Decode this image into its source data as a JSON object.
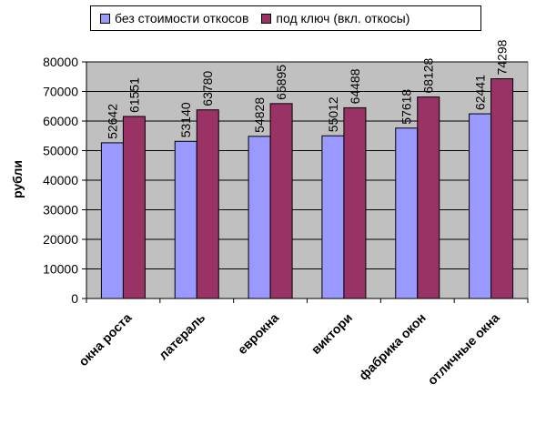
{
  "chart_data": {
    "type": "bar",
    "categories": [
      "окна роста",
      "латераль",
      "еврокна",
      "виктори",
      "фабрика окон",
      "отличные окна"
    ],
    "series": [
      {
        "name": "без стоимости откосов",
        "color": "#9999ff",
        "values": [
          52642,
          53140,
          54828,
          55012,
          57618,
          62441
        ]
      },
      {
        "name": "под ключ (вкл. откосы)",
        "color": "#993366",
        "values": [
          61551,
          63780,
          65895,
          64488,
          68128,
          74298
        ]
      }
    ],
    "ylabel": "рубли",
    "ylim": [
      0,
      80000
    ],
    "yticks": [
      "0",
      "10000",
      "20000",
      "30000",
      "40000",
      "50000",
      "60000",
      "70000",
      "80000"
    ],
    "plot_background": "#c0c0c0",
    "grid": true,
    "legend_position": "top",
    "data_labels": true
  }
}
